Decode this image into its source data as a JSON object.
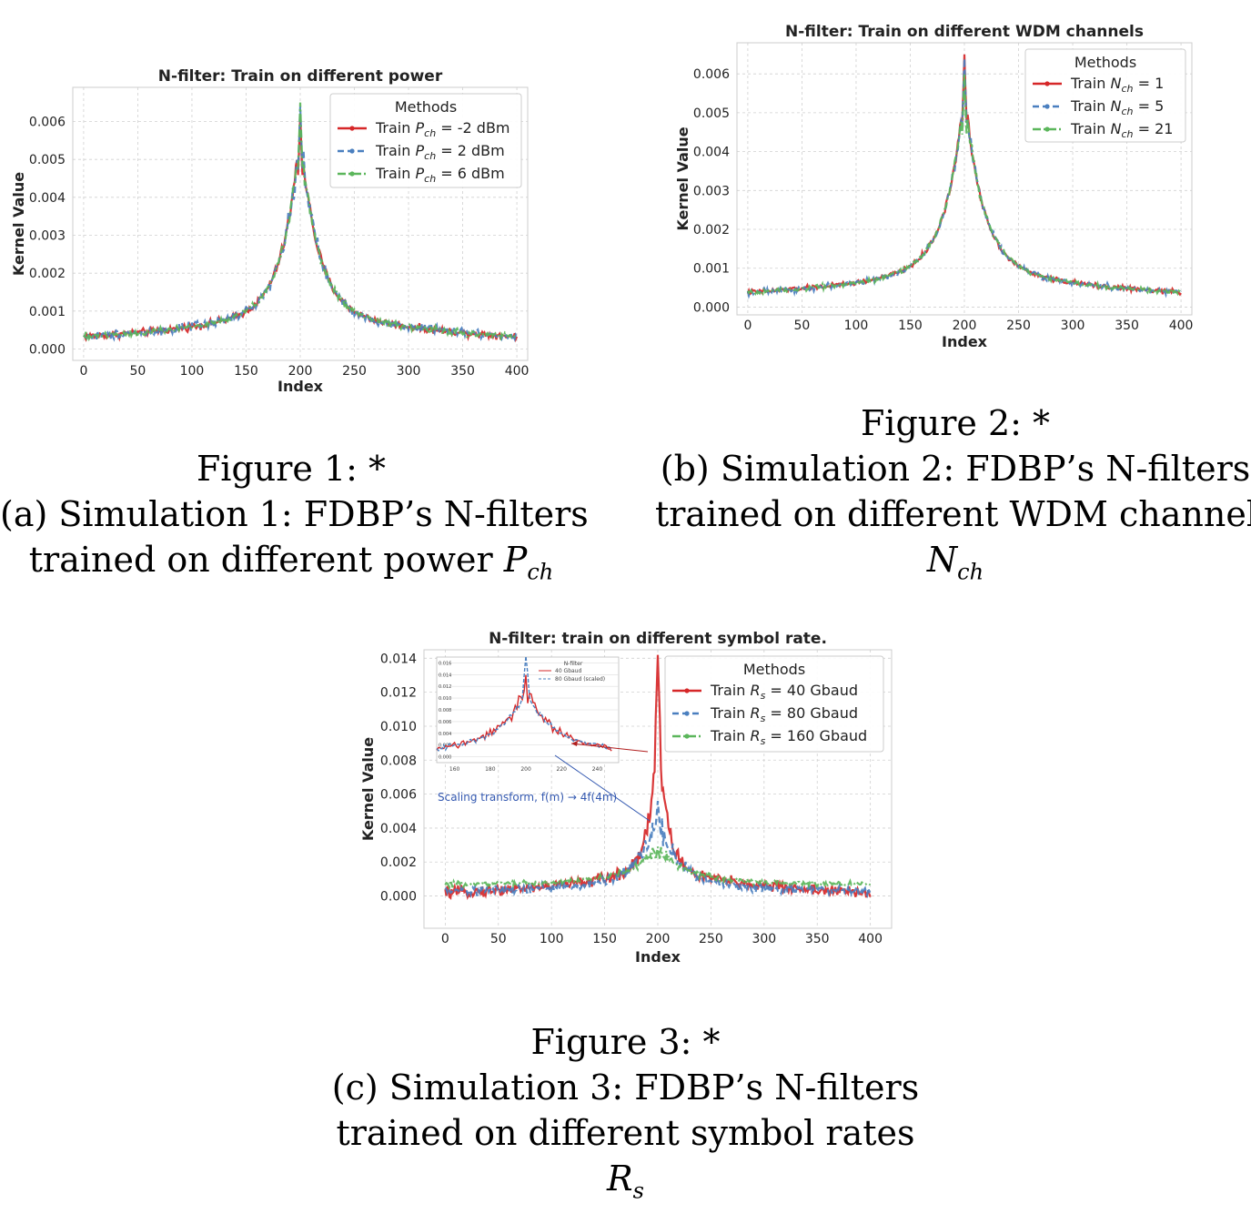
{
  "colors": {
    "red": "#d62728",
    "blue": "#4a7fbf",
    "green": "#5bb65b",
    "grid": "#d0d0d0",
    "axis_frame": "#cccccc",
    "inset_arrow_red": "#b11e1e",
    "inset_arrow_blue": "#3358b0"
  },
  "figures": [
    {
      "caption": {
        "fig_label": "Figure 1: *",
        "line1": "(a) Simulation 1: FDBP’s N-filters",
        "line2_text": "trained on different power",
        "line2_symbol": "P",
        "line2_sub": "ch"
      }
    },
    {
      "caption": {
        "fig_label": "Figure 2: *",
        "line1": "(b) Simulation 2: FDBP’s N-filters",
        "line2": "trained on different WDM channels",
        "line3_symbol": "N",
        "line3_sub": "ch"
      }
    },
    {
      "caption": {
        "fig_label": "Figure 3: *",
        "line1": "(c) Simulation 3: FDBP’s N-filters",
        "line2": "trained on different symbol rates",
        "line3_symbol": "R",
        "line3_sub": "s"
      }
    }
  ],
  "chart_data": [
    {
      "type": "line",
      "title": "N-filter: Train on different power",
      "xlabel": "Index",
      "ylabel": "Kernel Value",
      "xlim": [
        -10,
        410
      ],
      "ylim": [
        -0.0003,
        0.0069
      ],
      "xticks": [
        0,
        50,
        100,
        150,
        200,
        250,
        300,
        350,
        400
      ],
      "yticks": [
        0.0,
        0.001,
        0.002,
        0.003,
        0.004,
        0.005,
        0.006
      ],
      "ytick_labels": [
        "0.000",
        "0.001",
        "0.002",
        "0.003",
        "0.004",
        "0.005",
        "0.006"
      ],
      "grid": true,
      "legend": {
        "title": "Methods",
        "placement": "top-right",
        "entries": [
          {
            "prefix": "Train ",
            "symbol": "P",
            "sub": "ch",
            "suffix": " = -2 dBm"
          },
          {
            "prefix": "Train ",
            "symbol": "P",
            "sub": "ch",
            "suffix": " = 2 dBm"
          },
          {
            "prefix": "Train ",
            "symbol": "P",
            "sub": "ch",
            "suffix": " = 6 dBm"
          }
        ]
      },
      "series": [
        {
          "name": "Train Pch = -2 dBm",
          "style": "solid",
          "color": "red",
          "base": 0.00012,
          "peak": 0.0046,
          "decay": 16,
          "noise": 9e-05,
          "spike": 0.0062
        },
        {
          "name": "Train Pch = 2 dBm",
          "style": "dashed",
          "color": "blue",
          "base": 0.00012,
          "peak": 0.0046,
          "decay": 16,
          "noise": 0.00012,
          "spike": 0.0064
        },
        {
          "name": "Train Pch = 6 dBm",
          "style": "dashdot",
          "color": "green",
          "base": 0.00012,
          "peak": 0.0046,
          "decay": 16,
          "noise": 9e-05,
          "spike": 0.0065
        }
      ]
    },
    {
      "type": "line",
      "title": "N-filter: Train on different WDM channels",
      "xlabel": "Index",
      "ylabel": "Kernel Value",
      "xlim": [
        -10,
        410
      ],
      "ylim": [
        -0.0002,
        0.0068
      ],
      "xticks": [
        0,
        50,
        100,
        150,
        200,
        250,
        300,
        350,
        400
      ],
      "yticks": [
        0.0,
        0.001,
        0.002,
        0.003,
        0.004,
        0.005,
        0.006
      ],
      "ytick_labels": [
        "0.000",
        "0.001",
        "0.002",
        "0.003",
        "0.004",
        "0.005",
        "0.006"
      ],
      "grid": true,
      "legend": {
        "title": "Methods",
        "placement": "top-right",
        "entries": [
          {
            "prefix": "Train ",
            "symbol": "N",
            "sub": "ch",
            "suffix": " = 1"
          },
          {
            "prefix": "Train ",
            "symbol": "N",
            "sub": "ch",
            "suffix": " = 5"
          },
          {
            "prefix": "Train ",
            "symbol": "N",
            "sub": "ch",
            "suffix": " = 21"
          }
        ]
      },
      "series": [
        {
          "name": "Train Nch = 1",
          "style": "solid",
          "color": "red",
          "base": 0.00018,
          "peak": 0.0044,
          "decay": 17,
          "noise": 6e-05,
          "spike": 0.0065
        },
        {
          "name": "Train Nch = 5",
          "style": "dashed",
          "color": "blue",
          "base": 0.00018,
          "peak": 0.0044,
          "decay": 17,
          "noise": 7e-05,
          "spike": 0.0064
        },
        {
          "name": "Train Nch = 21",
          "style": "dashdot",
          "color": "green",
          "base": 0.00018,
          "peak": 0.0044,
          "decay": 17,
          "noise": 6e-05,
          "spike": 0.006
        }
      ]
    },
    {
      "type": "line",
      "title": "N-filter: train on different symbol rate.",
      "xlabel": "Index",
      "ylabel": "Kernel Value",
      "xlim": [
        -20,
        420
      ],
      "ylim": [
        -0.0019,
        0.0145
      ],
      "xticks": [
        0,
        50,
        100,
        150,
        200,
        250,
        300,
        350,
        400
      ],
      "yticks": [
        0.0,
        0.002,
        0.004,
        0.006,
        0.008,
        0.01,
        0.012,
        0.014
      ],
      "ytick_labels": [
        "0.000",
        "0.002",
        "0.004",
        "0.006",
        "0.008",
        "0.010",
        "0.012",
        "0.014"
      ],
      "grid": true,
      "legend": {
        "title": "Methods",
        "placement": "top-right",
        "entries": [
          {
            "prefix": "Train ",
            "symbol": "R",
            "sub": "s",
            "suffix": " = 40 Gbaud"
          },
          {
            "prefix": "Train ",
            "symbol": "R",
            "sub": "s",
            "suffix": " = 80 Gbaud"
          },
          {
            "prefix": "Train ",
            "symbol": "R",
            "sub": "s",
            "suffix": " = 160 Gbaud"
          }
        ]
      },
      "series": [
        {
          "name": "Train Rs = 40 Gbaud",
          "style": "solid",
          "color": "red",
          "base": -0.0002,
          "peak": 0.0082,
          "decay": 9,
          "noise": 0.00032,
          "spike": 0.0142
        },
        {
          "name": "Train Rs = 80 Gbaud",
          "style": "dashed",
          "color": "blue",
          "base": 0.0001,
          "peak": 0.0038,
          "decay": 18,
          "noise": 0.00028,
          "spike": 0.0056
        },
        {
          "name": "Train Rs = 160 Gbaud",
          "style": "dashdot",
          "color": "green",
          "base": 0.0006,
          "peak": 0.0019,
          "decay": 25,
          "noise": 0.00016,
          "spike": 0.0029
        }
      ],
      "inset": {
        "title": "N-filter",
        "legend_entries": [
          "40 Gbaud",
          "80 Gbaud (scaled)"
        ],
        "yticks": [
          0.0,
          0.002,
          0.004,
          0.006,
          0.008,
          0.01,
          0.012,
          0.014,
          0.016
        ],
        "ytick_labels": [
          "0.000",
          "0.002",
          "0.004",
          "0.006",
          "0.008",
          "0.010",
          "0.012",
          "0.014",
          "0.016"
        ],
        "xticks": [
          160,
          180,
          200,
          220,
          240
        ],
        "xlim": [
          150,
          252
        ],
        "ylim": [
          -0.001,
          0.017
        ],
        "annotation": "Scaling transform, f(m) → 4f(4m)"
      }
    }
  ]
}
